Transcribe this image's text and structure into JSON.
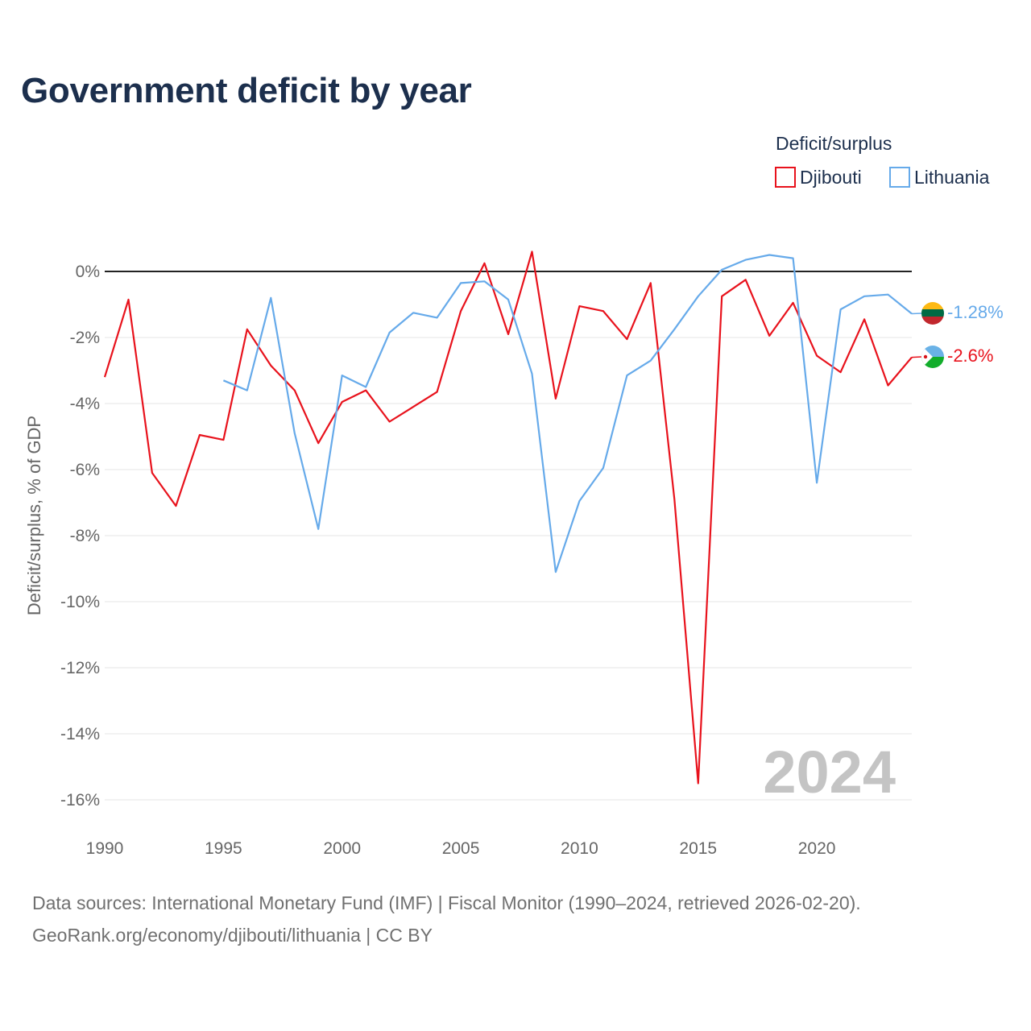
{
  "title": "Government deficit by year",
  "legend": {
    "title": "Deficit/surplus",
    "items": [
      {
        "name": "Djibouti",
        "color": "#e8121c"
      },
      {
        "name": "Lithuania",
        "color": "#66aaea"
      }
    ]
  },
  "watermark_year": "2024",
  "source_line_1": "Data sources: International Monetary Fund (IMF) | Fiscal Monitor (1990–2024, retrieved 2026-02-20).",
  "source_line_2": "GeoRank.org/economy/djibouti/lithuania | CC BY",
  "chart_data": {
    "type": "line",
    "title": "Government deficit by year",
    "xlabel": "",
    "ylabel": "Deficit/surplus, % of GDP",
    "xlim": [
      1990,
      2024
    ],
    "ylim": [
      -16.5,
      1.2
    ],
    "x_ticks": [
      1990,
      1995,
      2000,
      2005,
      2010,
      2015,
      2020
    ],
    "y_ticks": [
      0,
      -2,
      -4,
      -6,
      -8,
      -10,
      -12,
      -14,
      -16
    ],
    "y_tick_labels": [
      "0%",
      "-2%",
      "-4%",
      "-6%",
      "-8%",
      "-10%",
      "-12%",
      "-14%",
      "-16%"
    ],
    "zero_line": true,
    "series": [
      {
        "name": "Djibouti",
        "color": "#e8121c",
        "end_label": "-2.6%",
        "x": [
          1990,
          1991,
          1992,
          1993,
          1994,
          1995,
          1996,
          1997,
          1998,
          1999,
          2000,
          2001,
          2002,
          2003,
          2004,
          2005,
          2006,
          2007,
          2008,
          2009,
          2010,
          2011,
          2012,
          2013,
          2014,
          2015,
          2016,
          2017,
          2018,
          2019,
          2020,
          2021,
          2022,
          2023,
          2024
        ],
        "values": [
          -3.2,
          -0.85,
          -6.1,
          -7.1,
          -4.95,
          -5.1,
          -1.75,
          -2.85,
          -3.6,
          -5.2,
          -3.95,
          -3.6,
          -4.55,
          -4.1,
          -3.65,
          -1.2,
          0.25,
          -1.9,
          0.6,
          -3.85,
          -1.05,
          -1.2,
          -2.05,
          -0.35,
          -6.9,
          -15.5,
          -0.75,
          -0.25,
          -1.95,
          -0.95,
          -2.55,
          -3.05,
          -1.45,
          -3.45,
          -2.6
        ]
      },
      {
        "name": "Lithuania",
        "color": "#66aaea",
        "end_label": "-1.28%",
        "x": [
          1995,
          1996,
          1997,
          1998,
          1999,
          2000,
          2001,
          2002,
          2003,
          2004,
          2005,
          2006,
          2007,
          2008,
          2009,
          2010,
          2011,
          2012,
          2013,
          2014,
          2015,
          2016,
          2017,
          2018,
          2019,
          2020,
          2021,
          2022,
          2023,
          2024
        ],
        "values": [
          -3.3,
          -3.6,
          -0.8,
          -4.9,
          -7.8,
          -3.15,
          -3.5,
          -1.85,
          -1.25,
          -1.4,
          -0.35,
          -0.3,
          -0.85,
          -3.1,
          -9.1,
          -6.95,
          -5.95,
          -3.15,
          -2.7,
          -1.75,
          -0.75,
          0.05,
          0.35,
          0.5,
          0.4,
          -6.4,
          -1.15,
          -0.75,
          -0.7,
          -1.28
        ]
      }
    ]
  }
}
